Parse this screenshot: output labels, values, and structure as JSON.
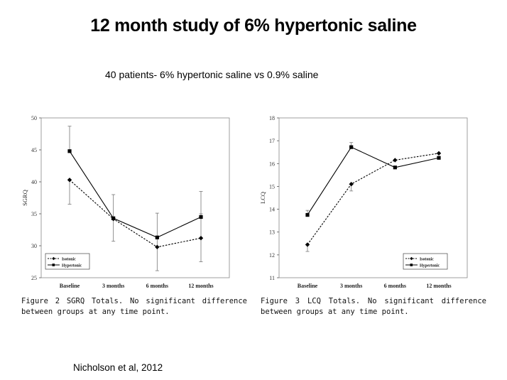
{
  "slide": {
    "title": "12 month study of 6% hypertonic saline",
    "subtitle": "40 patients-  6% hypertonic saline vs 0.9% saline",
    "citation": "Nicholson et al, 2012"
  },
  "captions": [
    "Figure 2   SGRQ Totals. No significant difference between groups at any time point.",
    "Figure 3   LCQ Totals. No significant difference between groups at any time point."
  ],
  "chart_data": [
    {
      "type": "line",
      "ylabel": "SGRQ",
      "xlabel": "",
      "categories": [
        "Baseline",
        "3 months",
        "6 months",
        "12 months"
      ],
      "ylim": [
        25,
        50
      ],
      "yticks": [
        25,
        30,
        35,
        40,
        45,
        50
      ],
      "legend_position": "bottom-left",
      "grid": false,
      "series": [
        {
          "name": "Isotonic",
          "marker": "diamond",
          "dash": true,
          "values": [
            40.3,
            34.2,
            29.8,
            31.2
          ],
          "err_upper": [
            null,
            38.0,
            35.1,
            35.0
          ],
          "err_lower": [
            36.5,
            30.7,
            26.1,
            27.5
          ]
        },
        {
          "name": "Hypertonic",
          "marker": "square",
          "dash": false,
          "values": [
            44.8,
            34.3,
            31.3,
            34.5
          ],
          "err_upper": [
            48.7,
            null,
            null,
            38.5
          ],
          "err_lower": [
            null,
            null,
            null,
            null
          ]
        }
      ]
    },
    {
      "type": "line",
      "ylabel": "LCQ",
      "xlabel": "",
      "categories": [
        "Baseline",
        "3 months",
        "6 months",
        "12 months"
      ],
      "ylim": [
        11,
        18
      ],
      "yticks": [
        11,
        12,
        13,
        14,
        15,
        16,
        17,
        18
      ],
      "legend_position": "bottom-right",
      "grid": false,
      "series": [
        {
          "name": "Isotonic",
          "marker": "diamond",
          "dash": true,
          "values": [
            12.45,
            15.1,
            16.15,
            16.45
          ],
          "err_upper": [
            null,
            null,
            null,
            null
          ],
          "err_lower": [
            12.15,
            14.8,
            null,
            null
          ]
        },
        {
          "name": "Hypertonic",
          "marker": "square",
          "dash": false,
          "values": [
            13.75,
            16.72,
            15.83,
            16.25
          ],
          "err_upper": [
            13.95,
            16.92,
            null,
            null
          ],
          "err_lower": [
            null,
            null,
            null,
            null
          ]
        }
      ]
    }
  ]
}
